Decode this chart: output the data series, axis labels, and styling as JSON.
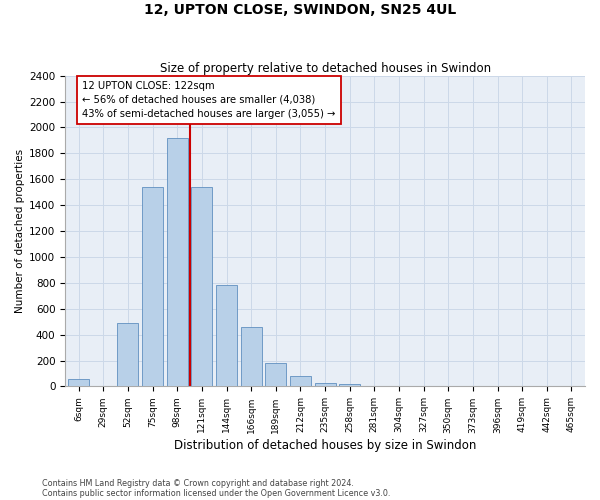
{
  "title1": "12, UPTON CLOSE, SWINDON, SN25 4UL",
  "title2": "Size of property relative to detached houses in Swindon",
  "xlabel": "Distribution of detached houses by size in Swindon",
  "ylabel": "Number of detached properties",
  "categories": [
    "6sqm",
    "29sqm",
    "52sqm",
    "75sqm",
    "98sqm",
    "121sqm",
    "144sqm",
    "166sqm",
    "189sqm",
    "212sqm",
    "235sqm",
    "258sqm",
    "281sqm",
    "304sqm",
    "327sqm",
    "350sqm",
    "373sqm",
    "396sqm",
    "419sqm",
    "442sqm",
    "465sqm"
  ],
  "values": [
    60,
    0,
    490,
    1540,
    1920,
    1540,
    780,
    460,
    185,
    80,
    25,
    20,
    0,
    0,
    0,
    0,
    0,
    0,
    0,
    0,
    0
  ],
  "bar_color": "#b8d0e8",
  "bar_edge_color": "#6090c0",
  "marker_index": 5,
  "marker_line_color": "#cc0000",
  "annotation_line1": "12 UPTON CLOSE: 122sqm",
  "annotation_line2": "← 56% of detached houses are smaller (4,038)",
  "annotation_line3": "43% of semi-detached houses are larger (3,055) →",
  "annotation_box_edge": "#cc0000",
  "ylim_max": 2400,
  "ytick_step": 200,
  "grid_color": "#ccd8e8",
  "footer1": "Contains HM Land Registry data © Crown copyright and database right 2024.",
  "footer2": "Contains public sector information licensed under the Open Government Licence v3.0.",
  "fig_width": 6.0,
  "fig_height": 5.0
}
